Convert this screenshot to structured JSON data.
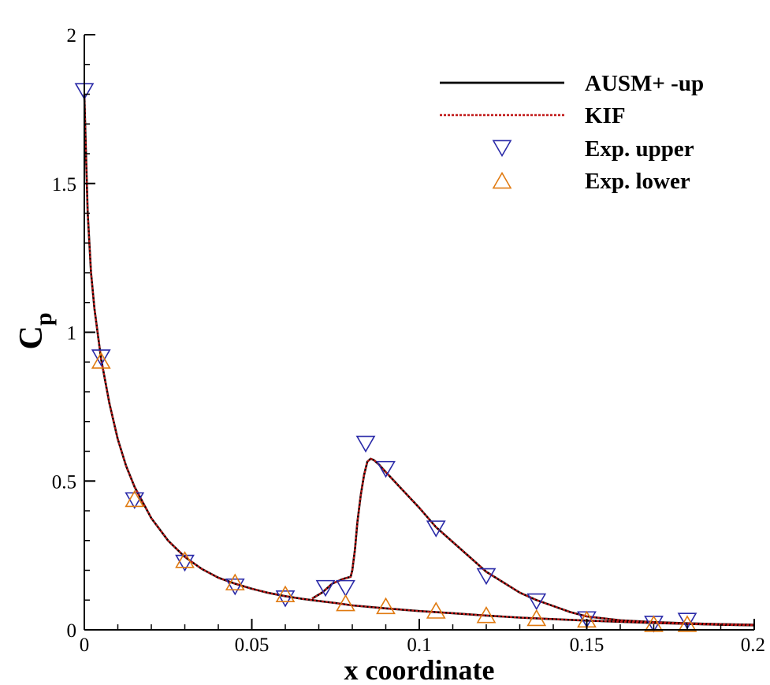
{
  "chart_data": {
    "type": "line",
    "xlabel": "x coordinate",
    "ylabel_main": "C",
    "ylabel_sub": "p",
    "xlim": [
      0,
      0.2
    ],
    "ylim": [
      0,
      2
    ],
    "x_ticks": [
      {
        "value": 0,
        "label": "0"
      },
      {
        "value": 0.05,
        "label": "0.05"
      },
      {
        "value": 0.1,
        "label": "0.1"
      },
      {
        "value": 0.15,
        "label": "0.15"
      },
      {
        "value": 0.2,
        "label": "0.2"
      }
    ],
    "y_ticks": [
      {
        "value": 0,
        "label": "0"
      },
      {
        "value": 0.5,
        "label": "0.5"
      },
      {
        "value": 1,
        "label": "1"
      },
      {
        "value": 1.5,
        "label": "1.5"
      },
      {
        "value": 2,
        "label": "2"
      }
    ],
    "x_minor_step": 0.01,
    "y_minor_step": 0.1,
    "grid": false,
    "legend_position": "top-right",
    "series": [
      {
        "name": "AUSM+ -up",
        "kind": "line",
        "style": "solid",
        "color": "#000000",
        "segments": [
          [
            [
              0,
              1.8
            ],
            [
              0.0005,
              1.6
            ],
            [
              0.001,
              1.4
            ],
            [
              0.002,
              1.2
            ],
            [
              0.003,
              1.08
            ],
            [
              0.005,
              0.91
            ],
            [
              0.0075,
              0.76
            ],
            [
              0.01,
              0.64
            ],
            [
              0.0125,
              0.55
            ],
            [
              0.015,
              0.48
            ],
            [
              0.02,
              0.375
            ],
            [
              0.025,
              0.3
            ],
            [
              0.03,
              0.245
            ],
            [
              0.035,
              0.205
            ],
            [
              0.04,
              0.175
            ],
            [
              0.045,
              0.155
            ],
            [
              0.05,
              0.138
            ],
            [
              0.055,
              0.124
            ],
            [
              0.06,
              0.113
            ],
            [
              0.065,
              0.104
            ],
            [
              0.07,
              0.097
            ],
            [
              0.075,
              0.09
            ],
            [
              0.08,
              0.082
            ],
            [
              0.09,
              0.072
            ],
            [
              0.1,
              0.063
            ],
            [
              0.11,
              0.056
            ],
            [
              0.12,
              0.048
            ],
            [
              0.13,
              0.041
            ],
            [
              0.14,
              0.036
            ],
            [
              0.15,
              0.031
            ],
            [
              0.16,
              0.027
            ],
            [
              0.17,
              0.023
            ],
            [
              0.18,
              0.02
            ],
            [
              0.19,
              0.017
            ],
            [
              0.2,
              0.015
            ]
          ],
          [
            [
              0.068,
              0.105
            ],
            [
              0.071,
              0.125
            ],
            [
              0.074,
              0.155
            ],
            [
              0.077,
              0.17
            ],
            [
              0.0795,
              0.178
            ],
            [
              0.08,
              0.2
            ],
            [
              0.0808,
              0.27
            ],
            [
              0.0815,
              0.36
            ],
            [
              0.0825,
              0.45
            ],
            [
              0.0835,
              0.52
            ],
            [
              0.0845,
              0.565
            ],
            [
              0.0855,
              0.575
            ],
            [
              0.0865,
              0.57
            ],
            [
              0.088,
              0.555
            ],
            [
              0.09,
              0.53
            ],
            [
              0.095,
              0.47
            ],
            [
              0.1,
              0.41
            ],
            [
              0.105,
              0.345
            ],
            [
              0.11,
              0.295
            ],
            [
              0.115,
              0.245
            ],
            [
              0.12,
              0.195
            ],
            [
              0.125,
              0.16
            ],
            [
              0.13,
              0.125
            ],
            [
              0.135,
              0.1
            ],
            [
              0.14,
              0.08
            ],
            [
              0.145,
              0.06
            ],
            [
              0.15,
              0.045
            ],
            [
              0.16,
              0.032
            ],
            [
              0.17,
              0.026
            ],
            [
              0.18,
              0.022
            ],
            [
              0.19,
              0.019
            ],
            [
              0.2,
              0.017
            ]
          ]
        ]
      },
      {
        "name": "KIF",
        "kind": "line",
        "style": "dotted",
        "color": "#c01818",
        "segments": [
          [
            [
              0,
              1.8
            ],
            [
              0.0005,
              1.6
            ],
            [
              0.001,
              1.4
            ],
            [
              0.002,
              1.2
            ],
            [
              0.003,
              1.08
            ],
            [
              0.005,
              0.91
            ],
            [
              0.0075,
              0.76
            ],
            [
              0.01,
              0.64
            ],
            [
              0.0125,
              0.55
            ],
            [
              0.015,
              0.48
            ],
            [
              0.02,
              0.375
            ],
            [
              0.025,
              0.3
            ],
            [
              0.03,
              0.245
            ],
            [
              0.035,
              0.205
            ],
            [
              0.04,
              0.175
            ],
            [
              0.045,
              0.155
            ],
            [
              0.05,
              0.138
            ],
            [
              0.055,
              0.124
            ],
            [
              0.06,
              0.113
            ],
            [
              0.065,
              0.104
            ],
            [
              0.07,
              0.097
            ],
            [
              0.075,
              0.09
            ],
            [
              0.08,
              0.082
            ],
            [
              0.09,
              0.072
            ],
            [
              0.1,
              0.063
            ],
            [
              0.11,
              0.056
            ],
            [
              0.12,
              0.048
            ],
            [
              0.13,
              0.041
            ],
            [
              0.14,
              0.036
            ],
            [
              0.15,
              0.031
            ],
            [
              0.16,
              0.027
            ],
            [
              0.17,
              0.023
            ],
            [
              0.18,
              0.02
            ],
            [
              0.19,
              0.017
            ],
            [
              0.2,
              0.015
            ]
          ],
          [
            [
              0.068,
              0.105
            ],
            [
              0.071,
              0.125
            ],
            [
              0.074,
              0.155
            ],
            [
              0.077,
              0.17
            ],
            [
              0.0795,
              0.178
            ],
            [
              0.08,
              0.2
            ],
            [
              0.0808,
              0.27
            ],
            [
              0.0815,
              0.36
            ],
            [
              0.0825,
              0.45
            ],
            [
              0.0835,
              0.52
            ],
            [
              0.0845,
              0.565
            ],
            [
              0.0855,
              0.575
            ],
            [
              0.0865,
              0.57
            ],
            [
              0.088,
              0.555
            ],
            [
              0.09,
              0.53
            ],
            [
              0.095,
              0.47
            ],
            [
              0.1,
              0.41
            ],
            [
              0.105,
              0.345
            ],
            [
              0.11,
              0.295
            ],
            [
              0.115,
              0.245
            ],
            [
              0.12,
              0.195
            ],
            [
              0.125,
              0.16
            ],
            [
              0.13,
              0.125
            ],
            [
              0.135,
              0.1
            ],
            [
              0.14,
              0.08
            ],
            [
              0.145,
              0.06
            ],
            [
              0.15,
              0.045
            ],
            [
              0.16,
              0.032
            ],
            [
              0.17,
              0.026
            ],
            [
              0.18,
              0.022
            ],
            [
              0.19,
              0.019
            ],
            [
              0.2,
              0.017
            ]
          ]
        ]
      },
      {
        "name": "Exp. upper",
        "kind": "marker",
        "marker": "triangle-down",
        "color": "#2a2aa8",
        "points": [
          [
            0,
            1.81
          ],
          [
            0.005,
            0.915
          ],
          [
            0.015,
            0.435
          ],
          [
            0.03,
            0.225
          ],
          [
            0.045,
            0.145
          ],
          [
            0.06,
            0.105
          ],
          [
            0.072,
            0.14
          ],
          [
            0.078,
            0.14
          ],
          [
            0.084,
            0.625
          ],
          [
            0.09,
            0.54
          ],
          [
            0.105,
            0.34
          ],
          [
            0.12,
            0.18
          ],
          [
            0.135,
            0.095
          ],
          [
            0.15,
            0.035
          ],
          [
            0.17,
            0.02
          ],
          [
            0.18,
            0.03
          ]
        ]
      },
      {
        "name": "Exp. lower",
        "kind": "marker",
        "marker": "triangle-up",
        "color": "#e07a10",
        "points": [
          [
            0.005,
            0.905
          ],
          [
            0.015,
            0.44
          ],
          [
            0.03,
            0.235
          ],
          [
            0.045,
            0.16
          ],
          [
            0.06,
            0.12
          ],
          [
            0.078,
            0.09
          ],
          [
            0.09,
            0.08
          ],
          [
            0.105,
            0.065
          ],
          [
            0.12,
            0.05
          ],
          [
            0.135,
            0.04
          ],
          [
            0.15,
            0.035
          ],
          [
            0.17,
            0.02
          ],
          [
            0.18,
            0.02
          ]
        ]
      }
    ]
  }
}
